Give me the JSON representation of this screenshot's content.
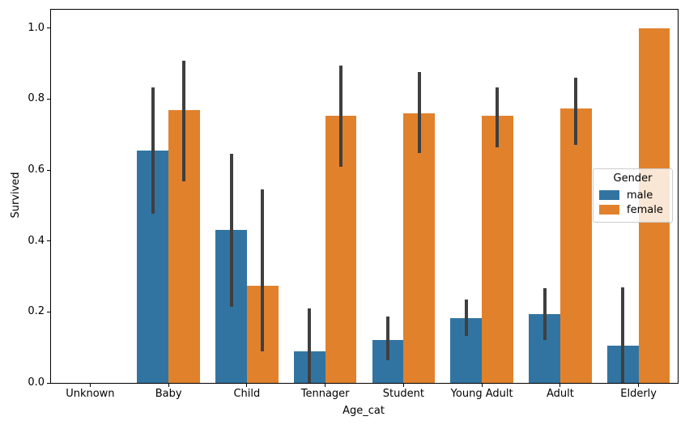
{
  "chart_data": {
    "type": "bar",
    "title": "",
    "xlabel": "Age_cat",
    "ylabel": "Survived",
    "categories": [
      "Unknown",
      "Baby",
      "Child",
      "Tennager",
      "Student",
      "Young Adult",
      "Adult",
      "Elderly"
    ],
    "series": [
      {
        "name": "male",
        "color": "#3274a1",
        "values": [
          0,
          0.654,
          0.431,
          0.089,
          0.121,
          0.182,
          0.194,
          0.105
        ],
        "ci_low": [
          null,
          0.476,
          0.215,
          0.0,
          0.065,
          0.133,
          0.12,
          0.0
        ],
        "ci_high": [
          null,
          0.832,
          0.645,
          0.211,
          0.188,
          0.236,
          0.268,
          0.269
        ]
      },
      {
        "name": "female",
        "color": "#e1812c",
        "values": [
          0,
          0.768,
          0.273,
          0.752,
          0.76,
          0.752,
          0.773,
          1.0
        ],
        "ci_low": [
          null,
          0.569,
          0.09,
          0.61,
          0.647,
          0.665,
          0.67,
          null
        ],
        "ci_high": [
          null,
          0.909,
          0.546,
          0.894,
          0.877,
          0.832,
          0.861,
          null
        ]
      }
    ],
    "y_ticks": [
      {
        "value": 0.0,
        "label": "0.0"
      },
      {
        "value": 0.2,
        "label": "0.2"
      },
      {
        "value": 0.4,
        "label": "0.4"
      },
      {
        "value": 0.6,
        "label": "0.6"
      },
      {
        "value": 0.8,
        "label": "0.8"
      },
      {
        "value": 1.0,
        "label": "1.0"
      }
    ],
    "ylim": [
      0,
      1.052
    ],
    "grid": false,
    "legend": {
      "title": "Gender",
      "entries": [
        "male",
        "female"
      ],
      "position": "center right"
    },
    "error_bar_color": "#3f3f3f"
  }
}
